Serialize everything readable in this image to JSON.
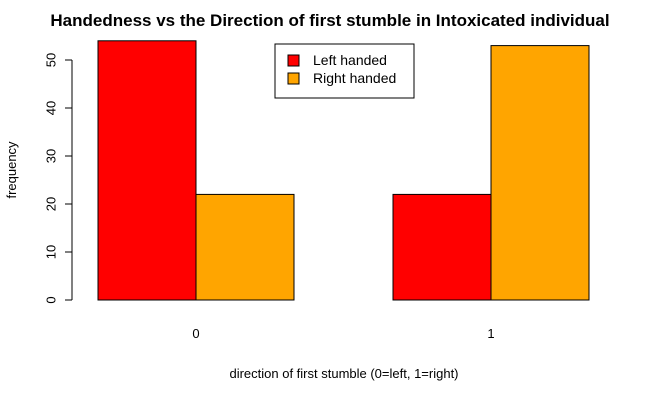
{
  "chart_data": {
    "type": "bar",
    "title": "Handedness vs the Direction of first stumble in Intoxicated individual",
    "xlabel": "direction of first stumble (0=left, 1=right)",
    "ylabel": "frequency",
    "categories": [
      "0",
      "1"
    ],
    "series": [
      {
        "name": "Left handed",
        "color": "#ff0000",
        "values": [
          54,
          22
        ]
      },
      {
        "name": "Right handed",
        "color": "#ffa500",
        "values": [
          22,
          53
        ]
      }
    ],
    "ylim": [
      0,
      55
    ],
    "yticks": [
      0,
      10,
      20,
      30,
      40,
      50
    ],
    "legend": "top-center",
    "grid": false
  }
}
